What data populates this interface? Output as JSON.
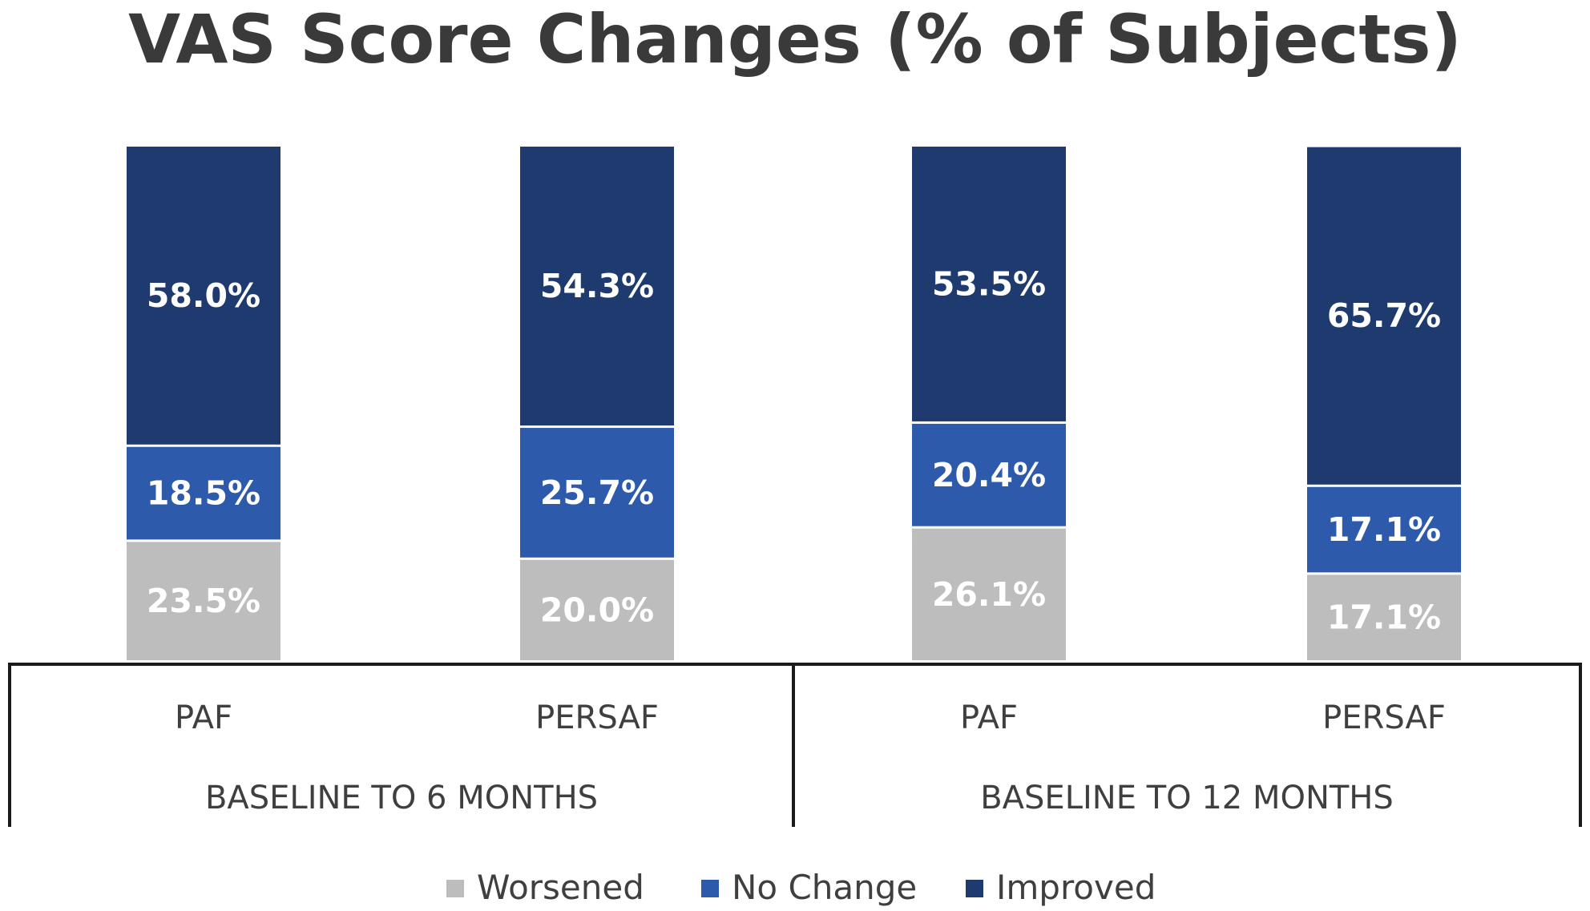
{
  "chart_data": {
    "type": "bar",
    "stacked": true,
    "title": "VAS Score Changes (% of Subjects)",
    "categories": [
      "PAF",
      "PERSAF",
      "PAF",
      "PERSAF"
    ],
    "groups": [
      {
        "label": "BASELINE TO 6 MONTHS",
        "categories": [
          0,
          1
        ]
      },
      {
        "label": "BASELINE TO 12 MONTHS",
        "categories": [
          2,
          3
        ]
      }
    ],
    "series": [
      {
        "name": "Worsened",
        "color": "#bdbdbd",
        "values": [
          23.5,
          20.0,
          26.1,
          17.1
        ],
        "labels": [
          "23.5%",
          "20.0%",
          "26.1%",
          "17.1%"
        ]
      },
      {
        "name": "No Change",
        "color": "#2e5aac",
        "values": [
          18.5,
          25.7,
          20.4,
          17.1
        ],
        "labels": [
          "18.5%",
          "25.7%",
          "20.4%",
          "17.1%"
        ]
      },
      {
        "name": "Improved",
        "color": "#1e3a6e",
        "values": [
          58.0,
          54.3,
          53.5,
          65.7
        ],
        "labels": [
          "58.0%",
          "54.3%",
          "53.5%",
          "65.7%"
        ]
      }
    ],
    "ylim": [
      0,
      100
    ],
    "grid": false,
    "y_axis_visible": false,
    "legend_position": "bottom"
  }
}
